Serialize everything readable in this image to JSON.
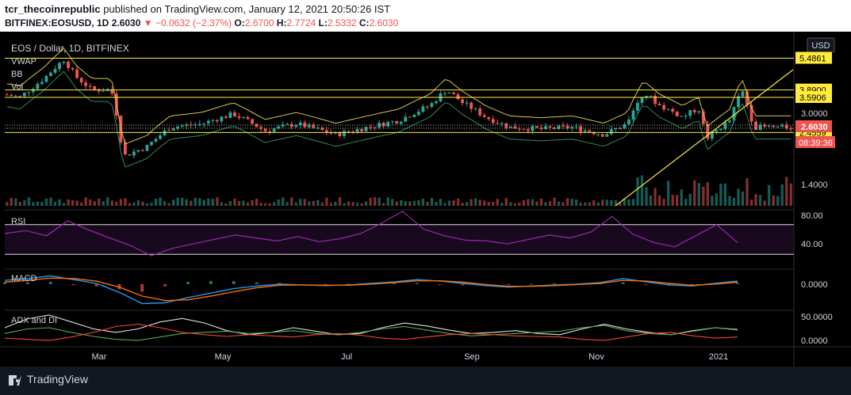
{
  "header": {
    "user": "tcr_thecoinrepublic",
    "published_text": " published on TradingView.com, January 12, 2021 20:50:26 IST",
    "symbol_line": "BITFINEX:EOSUSD, 1D",
    "last": "2.6030",
    "change": "−0.0632 (−2.37%)",
    "o_label": "O:",
    "o": "2.6700",
    "h_label": "H:",
    "h": "2.7724",
    "l_label": "L:",
    "l": "2.5332",
    "c_label": "C:",
    "c": "2.6030"
  },
  "footer": {
    "brand": "TradingView"
  },
  "colors": {
    "bg": "#000000",
    "up": "#26a69a",
    "down": "#ef5350",
    "level_line": "#ffeb3b",
    "rsi": "#9c27b0",
    "macd": "#2196f3",
    "signal": "#ff6d00",
    "adx": "#e0e0e0",
    "di_plus": "#4caf50",
    "di_minus": "#f44336"
  },
  "chart_data": {
    "type": "candlestick",
    "title": "EOS / Dollar, 1D, BITFINEX",
    "currency": "USD",
    "indicators": [
      "VWAP",
      "BB",
      "Vol",
      "RSI",
      "MACD",
      "ADX and DI"
    ],
    "x_labels": [
      "Mar",
      "May",
      "Jul",
      "Sep",
      "Nov",
      "2021"
    ],
    "y_ticks": [
      "3.0000",
      "1.4000"
    ],
    "price_levels": [
      {
        "value": 5.4861,
        "label": "5.4861"
      },
      {
        "value": 3.89,
        "label": "3.8900"
      },
      {
        "value": 3.5906,
        "label": "3.5906"
      },
      {
        "value": 2.4559,
        "label": "2.4559"
      }
    ],
    "last_price": {
      "value": 2.603,
      "label": "2.6030",
      "countdown": "08:39:36"
    },
    "price_path": [
      {
        "t": 0.0,
        "v": 3.7
      },
      {
        "t": 0.02,
        "v": 3.6
      },
      {
        "t": 0.05,
        "v": 4.4
      },
      {
        "t": 0.075,
        "v": 5.4
      },
      {
        "t": 0.09,
        "v": 4.5
      },
      {
        "t": 0.11,
        "v": 3.9
      },
      {
        "t": 0.135,
        "v": 3.9
      },
      {
        "t": 0.15,
        "v": 1.9
      },
      {
        "t": 0.18,
        "v": 2.1
      },
      {
        "t": 0.21,
        "v": 2.6
      },
      {
        "t": 0.25,
        "v": 2.7
      },
      {
        "t": 0.29,
        "v": 3.0
      },
      {
        "t": 0.33,
        "v": 2.5
      },
      {
        "t": 0.37,
        "v": 2.7
      },
      {
        "t": 0.42,
        "v": 2.4
      },
      {
        "t": 0.46,
        "v": 2.6
      },
      {
        "t": 0.5,
        "v": 2.8
      },
      {
        "t": 0.54,
        "v": 3.3
      },
      {
        "t": 0.56,
        "v": 3.9
      },
      {
        "t": 0.58,
        "v": 3.4
      },
      {
        "t": 0.61,
        "v": 2.9
      },
      {
        "t": 0.64,
        "v": 2.6
      },
      {
        "t": 0.68,
        "v": 2.55
      },
      {
        "t": 0.72,
        "v": 2.6
      },
      {
        "t": 0.76,
        "v": 2.4
      },
      {
        "t": 0.79,
        "v": 2.7
      },
      {
        "t": 0.81,
        "v": 3.8
      },
      {
        "t": 0.83,
        "v": 3.3
      },
      {
        "t": 0.86,
        "v": 2.9
      },
      {
        "t": 0.88,
        "v": 3.2
      },
      {
        "t": 0.89,
        "v": 2.3
      },
      {
        "t": 0.92,
        "v": 2.8
      },
      {
        "t": 0.935,
        "v": 3.9
      },
      {
        "t": 0.95,
        "v": 2.6
      }
    ],
    "rsi": {
      "label": "RSI",
      "ticks": [
        "80.00",
        "40.00"
      ],
      "levels": [
        70,
        30
      ],
      "ylim": [
        10,
        90
      ],
      "values": [
        58,
        62,
        55,
        75,
        63,
        52,
        42,
        28,
        38,
        44,
        50,
        56,
        52,
        48,
        54,
        47,
        51,
        58,
        72,
        88,
        64,
        55,
        49,
        48,
        44,
        50,
        56,
        52,
        60,
        81,
        57,
        46,
        40,
        55,
        70,
        46
      ]
    },
    "macd": {
      "label": "MACD",
      "ticks": [
        "0.0000"
      ],
      "ylim": [
        -0.7,
        0.4
      ],
      "macd": [
        0.1,
        0.15,
        0.22,
        0.12,
        0.02,
        -0.22,
        -0.52,
        -0.5,
        -0.36,
        -0.24,
        -0.12,
        -0.05,
        0.0,
        -0.02,
        -0.04,
        -0.02,
        0.02,
        0.06,
        0.12,
        0.08,
        0.02,
        -0.04,
        -0.08,
        -0.05,
        -0.02,
        0.0,
        0.04,
        0.15,
        0.06,
        -0.02,
        -0.05,
        0.02,
        0.08
      ],
      "signal": [
        0.05,
        0.1,
        0.16,
        0.15,
        0.08,
        -0.08,
        -0.32,
        -0.44,
        -0.42,
        -0.32,
        -0.2,
        -0.1,
        -0.03,
        -0.02,
        -0.03,
        -0.03,
        0.0,
        0.04,
        0.09,
        0.09,
        0.05,
        -0.01,
        -0.06,
        -0.06,
        -0.04,
        -0.01,
        0.02,
        0.1,
        0.08,
        0.02,
        -0.03,
        0.0,
        0.05
      ]
    },
    "adx": {
      "label": "ADX and DI",
      "ticks": [
        "50.0000",
        "0.0000"
      ],
      "ylim": [
        0,
        60
      ],
      "adx": [
        30,
        45,
        52,
        40,
        28,
        22,
        28,
        40,
        46,
        38,
        25,
        18,
        22,
        30,
        24,
        18,
        20,
        30,
        38,
        33,
        26,
        20,
        22,
        25,
        20,
        18,
        28,
        36,
        28,
        22,
        18,
        25,
        30,
        27
      ],
      "di_plus": [
        20,
        28,
        30,
        22,
        15,
        10,
        8,
        14,
        20,
        22,
        24,
        20,
        22,
        25,
        20,
        18,
        22,
        28,
        32,
        26,
        20,
        16,
        18,
        20,
        22,
        24,
        30,
        34,
        25,
        20,
        18,
        24,
        30,
        26
      ],
      "di_minus": [
        12,
        10,
        8,
        14,
        22,
        32,
        36,
        30,
        22,
        18,
        15,
        18,
        16,
        14,
        18,
        20,
        17,
        12,
        10,
        14,
        18,
        20,
        18,
        16,
        15,
        14,
        10,
        8,
        14,
        20,
        22,
        16,
        12,
        14
      ]
    }
  }
}
